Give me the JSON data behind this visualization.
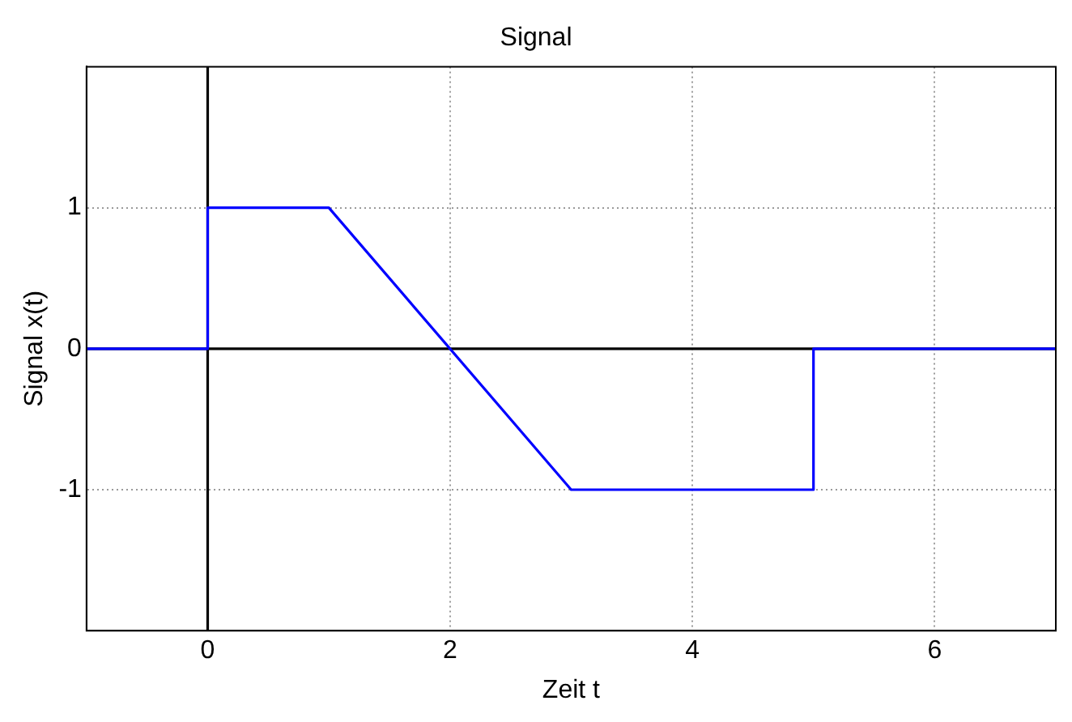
{
  "chart_data": {
    "type": "line",
    "title": "Signal",
    "xlabel": "Zeit t",
    "ylabel": "Signal x(t)",
    "x": [
      -1,
      0,
      0,
      1,
      3,
      5,
      5,
      7
    ],
    "series": [
      {
        "color": "#000000",
        "x": [
          0,
          0
        ],
        "values": [
          -2,
          2
        ]
      },
      {
        "color": "#000000",
        "x": [
          -1,
          7
        ],
        "values": [
          0,
          0
        ]
      },
      {
        "color": "#0000ff",
        "values": [
          0,
          0,
          1,
          1,
          -1,
          -1,
          0,
          0
        ]
      }
    ],
    "xlim": [
      -1,
      7
    ],
    "xticks": [
      0,
      2,
      4,
      6
    ],
    "ylim": [
      -2,
      2
    ],
    "yticks": [
      -1,
      0,
      1
    ],
    "grid": true,
    "legend": false,
    "marker": "none",
    "line_style": "solid"
  }
}
